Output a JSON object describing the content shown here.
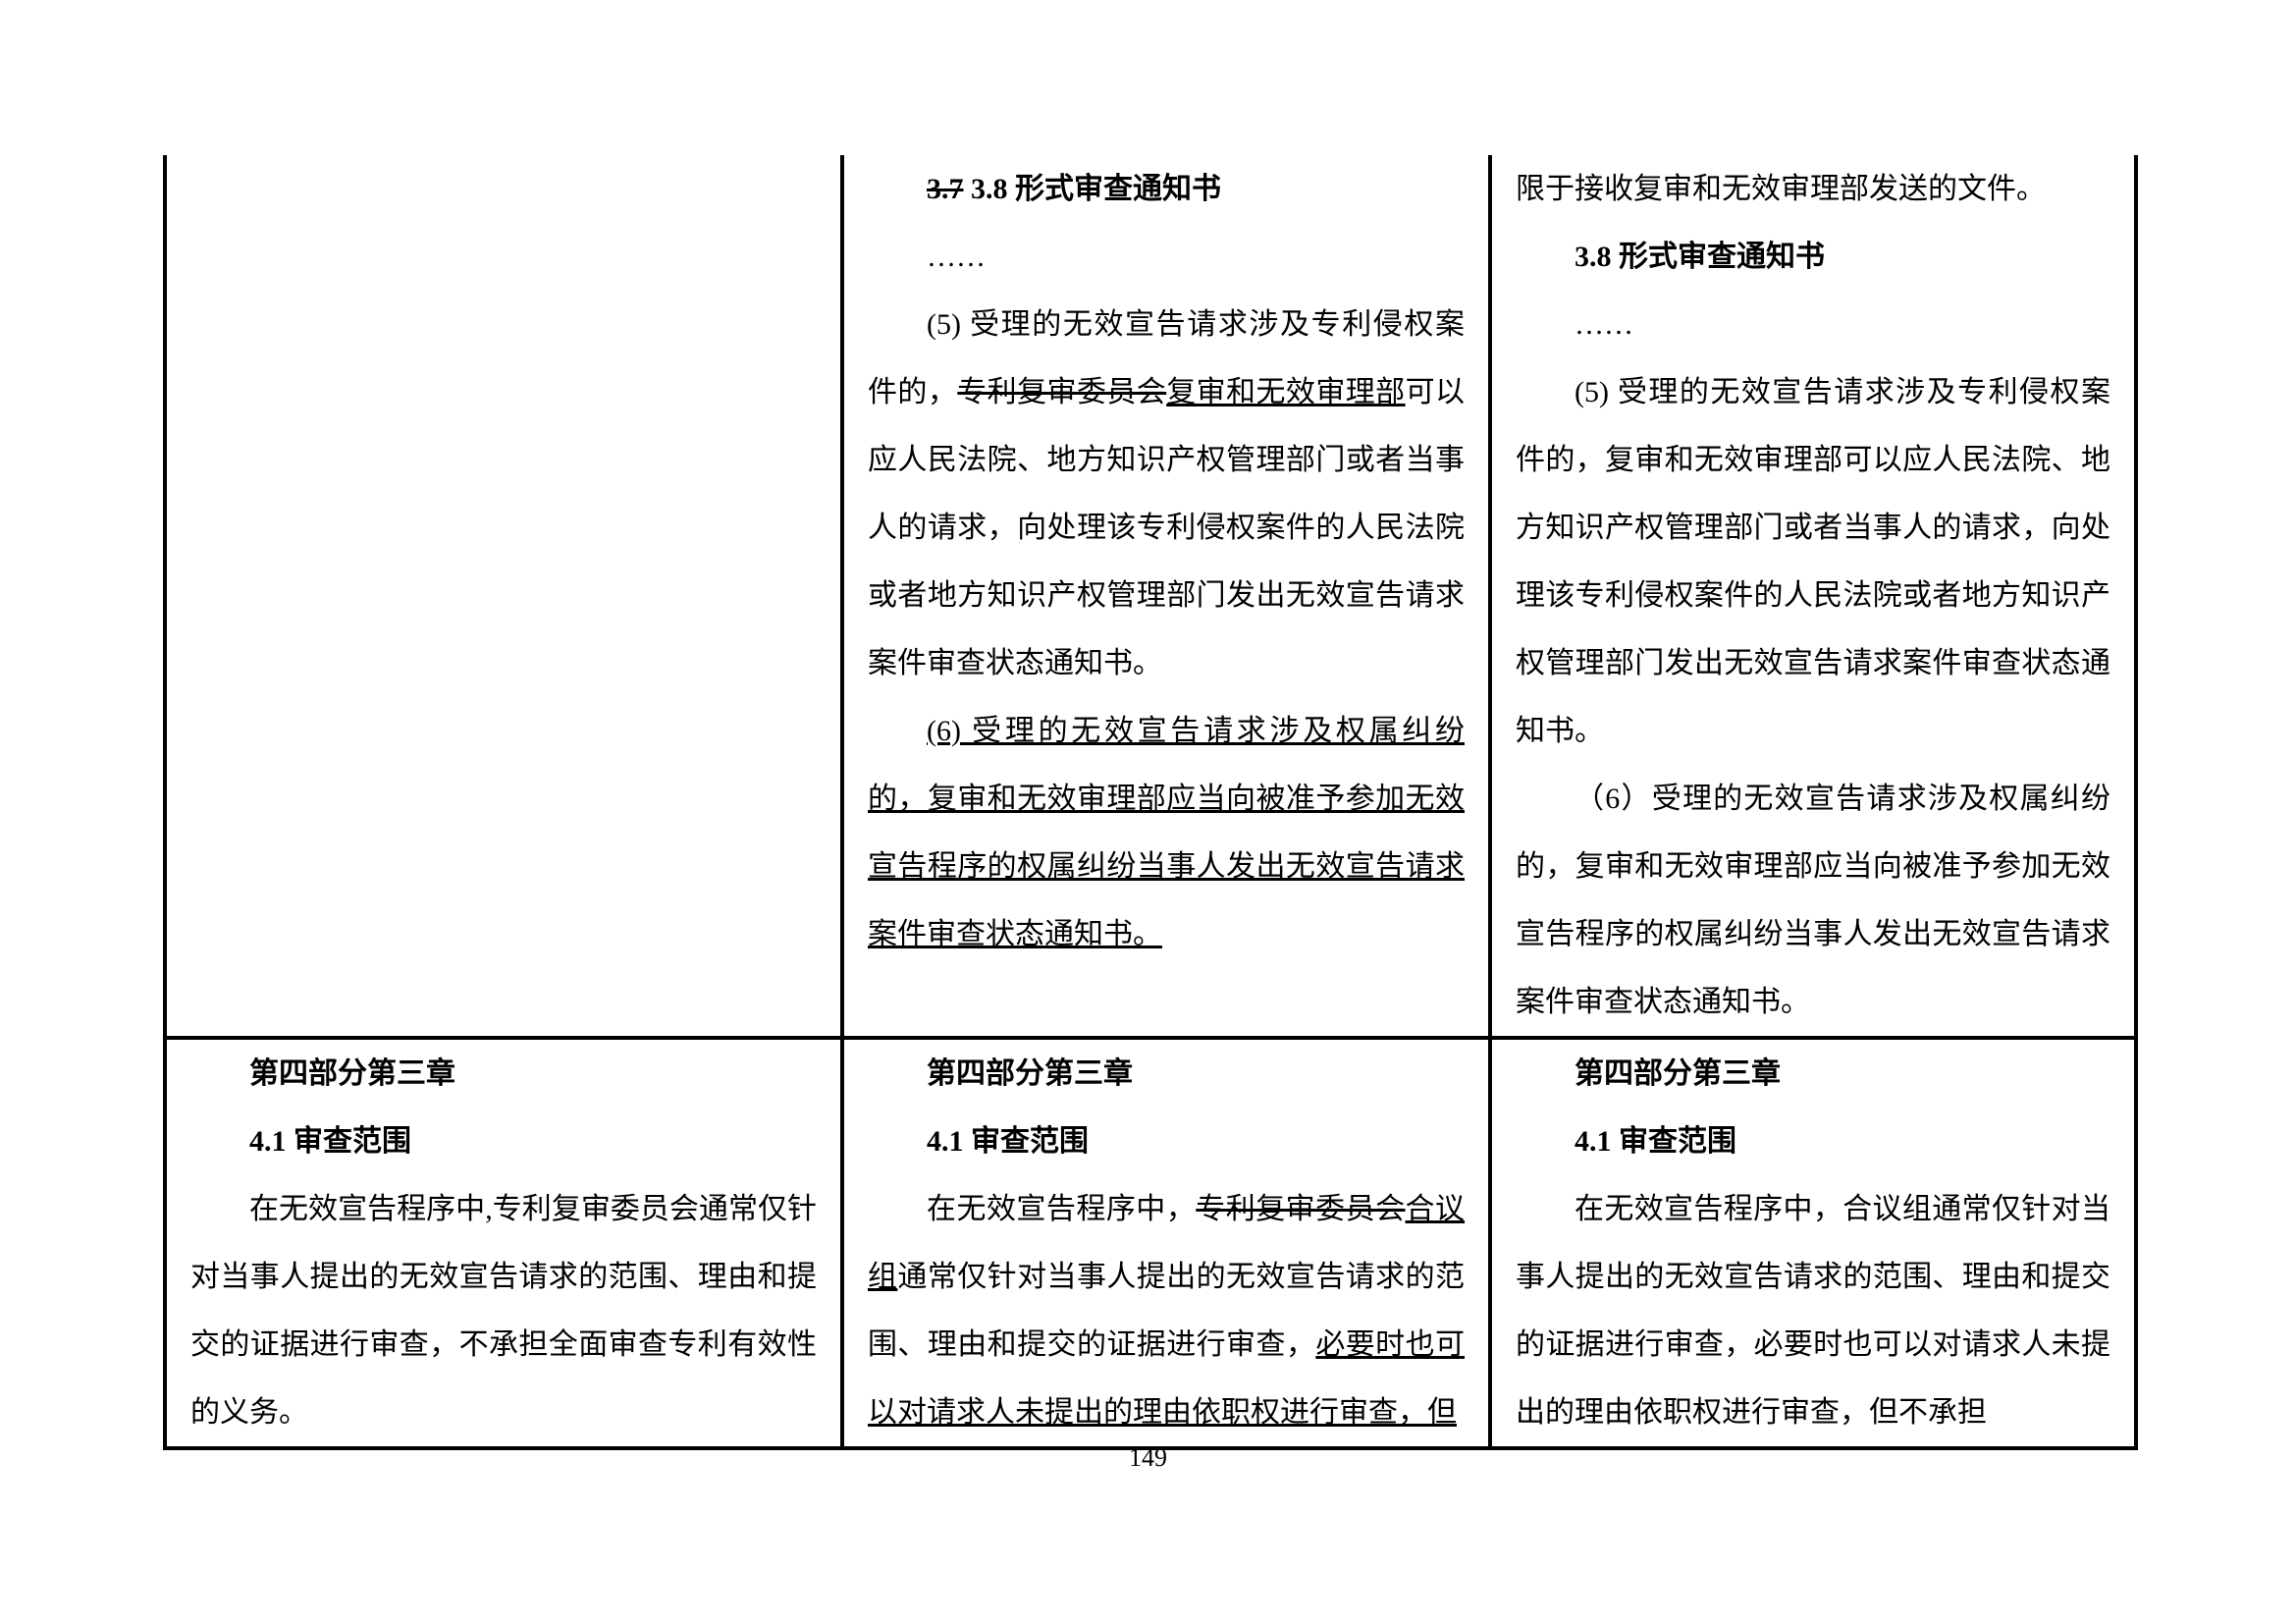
{
  "page_number": "149",
  "table": {
    "rows": [
      {
        "col1": "",
        "col2": {
          "heading_strike": "3.7",
          "heading_keep": " 3.8 形式审查通知书",
          "ellipsis": "……",
          "p1_prefix": "(5) 受理的无效宣告请求涉及专利侵权案件的，",
          "p1_strike": "专利复审委员会",
          "p1_underline": "复审和无效审理部",
          "p1_suffix": "可以应人民法院、地方知识产权管理部门或者当事人的请求，向处理该专利侵权案件的人民法院或者地方知识产权管理部门发出无效宣告请求案件审查状态通知书。",
          "p2_underline": "(6) 受理的无效宣告请求涉及权属纠纷的，复审和无效审理部应当向被准予参加无效宣告程序的权属纠纷当事人发出无效宣告请求案件审查状态通知书。"
        },
        "col3": {
          "p0": "限于接收复审和无效审理部发送的文件。",
          "heading": "3.8 形式审查通知书",
          "ellipsis": "……",
          "p1": "(5) 受理的无效宣告请求涉及专利侵权案件的，复审和无效审理部可以应人民法院、地方知识产权管理部门或者当事人的请求，向处理该专利侵权案件的人民法院或者地方知识产权管理部门发出无效宣告请求案件审查状态通知书。",
          "p2": "（6）受理的无效宣告请求涉及权属纠纷的，复审和无效审理部应当向被准予参加无效宣告程序的权属纠纷当事人发出无效宣告请求案件审查状态通知书。"
        }
      },
      {
        "col1": {
          "chapter": "第四部分第三章",
          "section": "4.1 审查范围",
          "para": "在无效宣告程序中,专利复审委员会通常仅针对当事人提出的无效宣告请求的范围、理由和提交的证据进行审查，不承担全面审查专利有效性的义务。"
        },
        "col2": {
          "chapter": "第四部分第三章",
          "section": "4.1 审查范围",
          "p_prefix": "在无效宣告程序中，",
          "p_strike": "专利复审委员会",
          "p_underline1": "合议组",
          "p_mid": "通常仅针对当事人提出的无效宣告请求的范围、理由和提交的证据进行审查，",
          "p_underline2": "必要时也可以对请求人未提出的理由依职权进行审查，但"
        },
        "col3": {
          "chapter": "第四部分第三章",
          "section": "4.1 审查范围",
          "para": "在无效宣告程序中，合议组通常仅针对当事人提出的无效宣告请求的范围、理由和提交的证据进行审查，必要时也可以对请求人未提出的理由依职权进行审查，但不承担"
        }
      }
    ]
  }
}
